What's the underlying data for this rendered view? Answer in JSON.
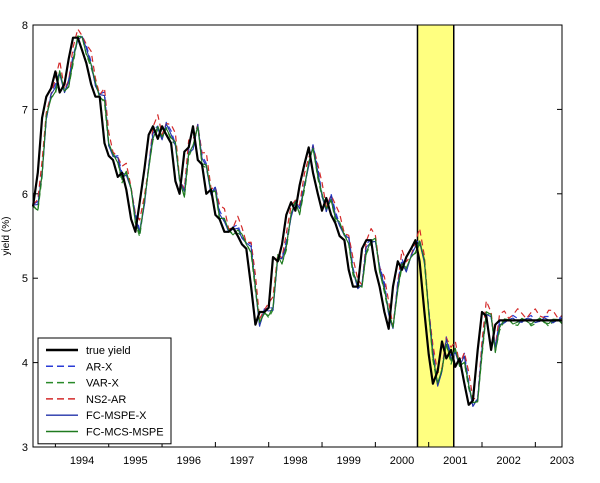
{
  "chart_data": {
    "type": "line",
    "title": "",
    "xlabel": "",
    "ylabel": "yield (%)",
    "xlim": [
      1993.58,
      2003.5
    ],
    "ylim": [
      3,
      8
    ],
    "yticks": [
      3,
      4,
      5,
      6,
      7,
      8
    ],
    "xticks": [
      {
        "label": "1994",
        "x": 1994.0
      },
      {
        "label": "1995",
        "x": 1995.0
      },
      {
        "label": "1996",
        "x": 1996.0
      },
      {
        "label": "1997",
        "x": 1997.0
      },
      {
        "label": "1998",
        "x": 1998.0
      },
      {
        "label": "1999",
        "x": 1999.0
      },
      {
        "label": "2000",
        "x": 2000.0
      },
      {
        "label": "2001",
        "x": 2001.0
      },
      {
        "label": "2002",
        "x": 2002.0
      },
      {
        "label": "2003",
        "x": 2003.0
      }
    ],
    "shaded_region": {
      "x0": 2000.79,
      "x1": 2001.47,
      "color": "#ffff80"
    },
    "grid": false,
    "legend_position": "bottom-left",
    "true_yield": {
      "x": [
        1993.58,
        1993.67,
        1993.75,
        1993.83,
        1993.92,
        1994.0,
        1994.08,
        1994.17,
        1994.25,
        1994.33,
        1994.42,
        1994.5,
        1994.58,
        1994.67,
        1994.75,
        1994.83,
        1994.92,
        1995.0,
        1995.08,
        1995.17,
        1995.25,
        1995.33,
        1995.42,
        1995.5,
        1995.58,
        1995.67,
        1995.75,
        1995.83,
        1995.92,
        1996.0,
        1996.08,
        1996.17,
        1996.25,
        1996.33,
        1996.42,
        1996.5,
        1996.58,
        1996.67,
        1996.75,
        1996.83,
        1996.92,
        1997.0,
        1997.08,
        1997.17,
        1997.25,
        1997.33,
        1997.42,
        1997.5,
        1997.58,
        1997.67,
        1997.75,
        1997.83,
        1997.92,
        1998.0,
        1998.08,
        1998.17,
        1998.25,
        1998.33,
        1998.42,
        1998.5,
        1998.58,
        1998.67,
        1998.75,
        1998.83,
        1998.92,
        1999.0,
        1999.08,
        1999.17,
        1999.25,
        1999.33,
        1999.42,
        1999.5,
        1999.58,
        1999.67,
        1999.75,
        1999.83,
        1999.92,
        2000.0,
        2000.08,
        2000.17,
        2000.25,
        2000.33,
        2000.42,
        2000.5,
        2000.58,
        2000.67,
        2000.75,
        2000.83,
        2000.92,
        2001.0,
        2001.08,
        2001.17,
        2001.25,
        2001.33,
        2001.42,
        2001.5,
        2001.58,
        2001.67,
        2001.75,
        2001.83,
        2001.92,
        2002.0,
        2002.08,
        2002.17,
        2002.25,
        2002.33,
        2002.42,
        2002.5,
        2002.58,
        2002.67,
        2002.75,
        2002.83,
        2002.92,
        2003.0,
        2003.08,
        2003.17,
        2003.25,
        2003.33,
        2003.42,
        2003.5
      ],
      "y": [
        5.85,
        6.25,
        6.9,
        7.15,
        7.25,
        7.45,
        7.2,
        7.3,
        7.6,
        7.85,
        7.85,
        7.7,
        7.55,
        7.3,
        7.15,
        7.15,
        6.6,
        6.45,
        6.4,
        6.2,
        6.25,
        6.05,
        5.7,
        5.55,
        5.9,
        6.3,
        6.7,
        6.8,
        6.65,
        6.8,
        6.7,
        6.6,
        6.15,
        6.0,
        6.5,
        6.55,
        6.8,
        6.4,
        6.35,
        6.0,
        6.05,
        5.75,
        5.7,
        5.55,
        5.55,
        5.6,
        5.5,
        5.4,
        5.35,
        4.9,
        4.45,
        4.6,
        4.6,
        4.65,
        5.25,
        5.2,
        5.4,
        5.75,
        5.9,
        5.8,
        6.1,
        6.35,
        6.55,
        6.25,
        6.0,
        5.8,
        5.95,
        5.75,
        5.65,
        5.5,
        5.45,
        5.1,
        4.9,
        4.9,
        5.35,
        5.45,
        5.45,
        5.1,
        4.9,
        4.6,
        4.4,
        4.9,
        5.2,
        5.1,
        5.25,
        5.35,
        5.45,
        5.2,
        4.6,
        4.1,
        3.75,
        3.9,
        4.25,
        4.05,
        4.15,
        3.95,
        4.05,
        3.75,
        3.5,
        3.55,
        4.15,
        4.6,
        4.55,
        4.15,
        4.45,
        4.5,
        4.5,
        4.5,
        4.5,
        4.5,
        4.5,
        4.5,
        4.5,
        4.5,
        4.5,
        4.5,
        4.5,
        4.5,
        4.5,
        4.5
      ]
    },
    "series": [
      {
        "name": "true yield",
        "color": "#000000",
        "dash": "solid",
        "width": 2.2,
        "lag": 0,
        "bias": 0.0,
        "noise": 0.0
      },
      {
        "name": "AR-X",
        "color": "#2a3bd6",
        "dash": "dashed",
        "width": 1.2,
        "lag": 1,
        "bias": 0.02,
        "noise": 0.04
      },
      {
        "name": "VAR-X",
        "color": "#2a8a2a",
        "dash": "dashed",
        "width": 1.2,
        "lag": 1,
        "bias": -0.02,
        "noise": 0.05
      },
      {
        "name": "NS2-AR",
        "color": "#d42a2a",
        "dash": "dashed",
        "width": 1.2,
        "lag": 1,
        "bias": 0.08,
        "noise": 0.06
      },
      {
        "name": "FC-MSPE-X",
        "color": "#2233aa",
        "dash": "solid",
        "width": 1.1,
        "lag": 1,
        "bias": 0.0,
        "noise": 0.03
      },
      {
        "name": "FC-MCS-MSPE",
        "color": "#1f7a1f",
        "dash": "solid",
        "width": 1.1,
        "lag": 1,
        "bias": -0.01,
        "noise": 0.035
      }
    ]
  }
}
